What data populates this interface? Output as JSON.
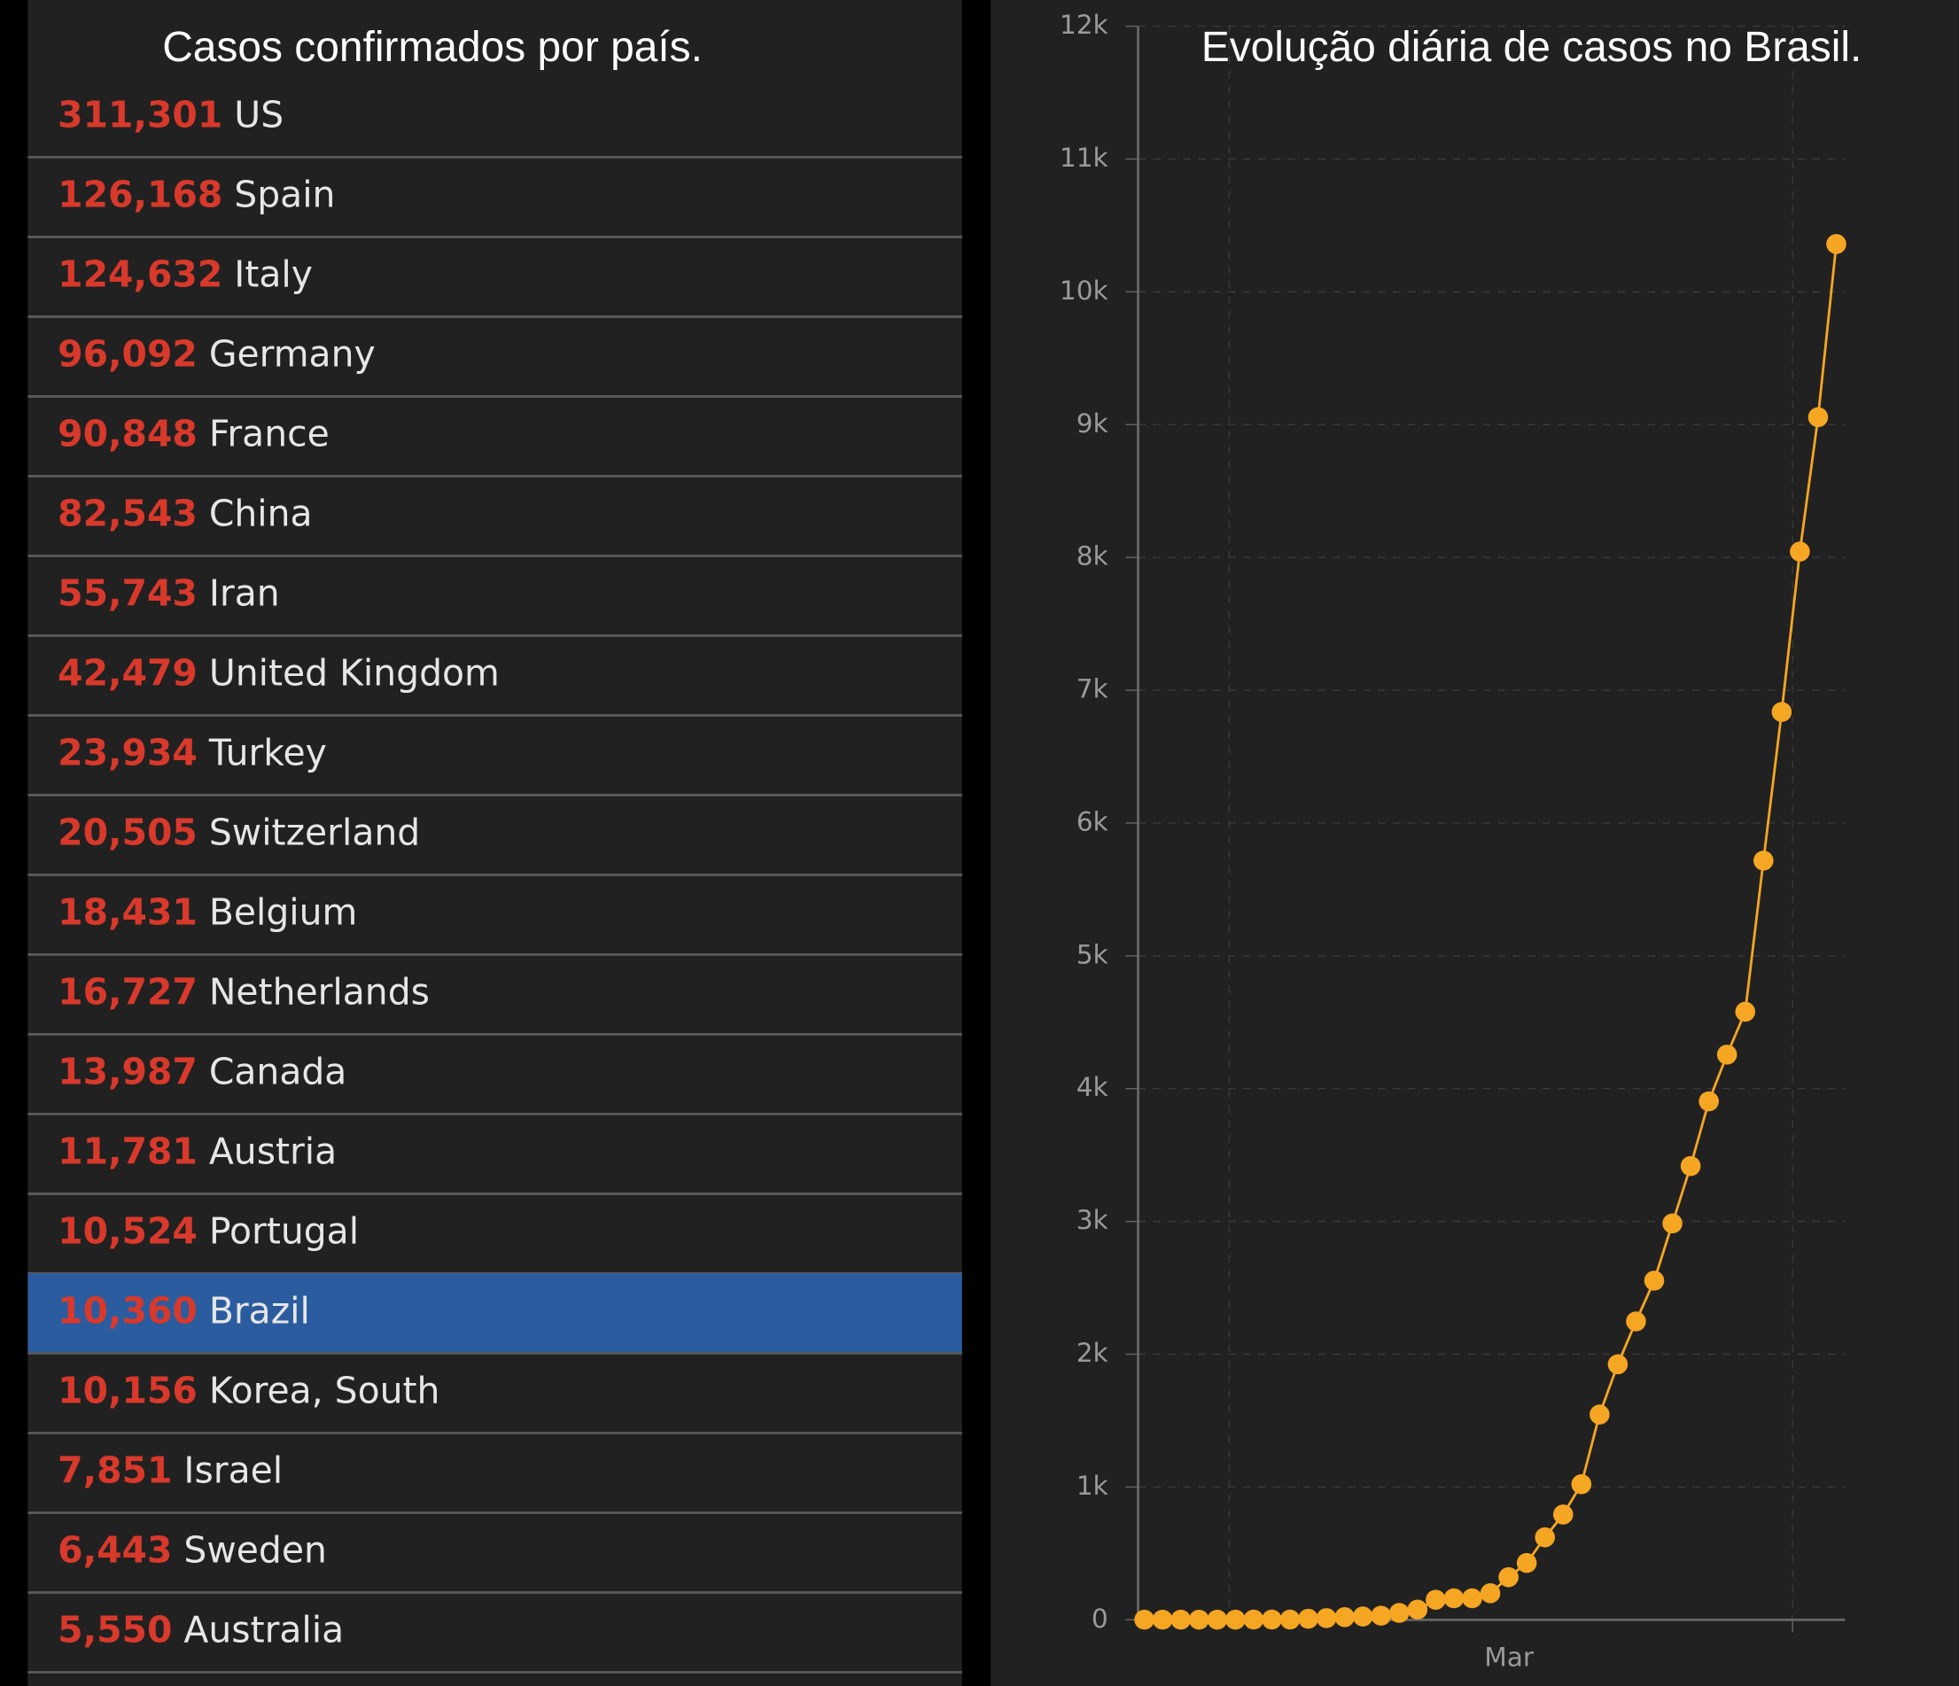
{
  "list": {
    "title": "Casos confirmados por país.",
    "selected_index": 15,
    "rows": [
      [
        "311,301",
        "US"
      ],
      [
        "126,168",
        "Spain"
      ],
      [
        "124,632",
        "Italy"
      ],
      [
        "96,092",
        "Germany"
      ],
      [
        "90,848",
        "France"
      ],
      [
        "82,543",
        "China"
      ],
      [
        "55,743",
        "Iran"
      ],
      [
        "42,479",
        "United Kingdom"
      ],
      [
        "23,934",
        "Turkey"
      ],
      [
        "20,505",
        "Switzerland"
      ],
      [
        "18,431",
        "Belgium"
      ],
      [
        "16,727",
        "Netherlands"
      ],
      [
        "13,987",
        "Canada"
      ],
      [
        "11,781",
        "Austria"
      ],
      [
        "10,524",
        "Portugal"
      ],
      [
        "10,360",
        "Brazil"
      ],
      [
        "10,156",
        "Korea, South"
      ],
      [
        "7,851",
        "Israel"
      ],
      [
        "6,443",
        "Sweden"
      ],
      [
        "5,550",
        "Australia"
      ]
    ]
  },
  "chart_data": {
    "type": "line",
    "title": "Evolução diária de casos no Brasil.",
    "x_label": "Mar",
    "color": "#f5a623",
    "grid": true,
    "values": [
      1,
      1,
      1,
      1,
      1,
      1,
      2,
      2,
      2,
      8,
      13,
      20,
      25,
      31,
      52,
      77,
      151,
      162,
      162,
      200,
      321,
      428,
      621,
      793,
      1021,
      1546,
      1924,
      2247,
      2554,
      2985,
      3417,
      3904,
      4256,
      4579,
      5717,
      6836,
      8044,
      9056,
      10360
    ],
    "ylim": [
      0,
      12000
    ],
    "yticks": [
      0,
      {
        "value": 1000,
        "label": "1k"
      },
      {
        "value": 2000,
        "label": "2k"
      },
      {
        "value": 3000,
        "label": "3k"
      },
      {
        "value": 4000,
        "label": "4k"
      },
      {
        "value": 5000,
        "label": "5k"
      },
      {
        "value": 6000,
        "label": "6k"
      },
      {
        "value": 7000,
        "label": "7k"
      },
      {
        "value": 8000,
        "label": "8k"
      },
      {
        "value": 9000,
        "label": "9k"
      },
      {
        "value": 10000,
        "label": "10k"
      },
      {
        "value": 11000,
        "label": "11k"
      },
      {
        "value": 12000,
        "label": "12k"
      }
    ]
  }
}
